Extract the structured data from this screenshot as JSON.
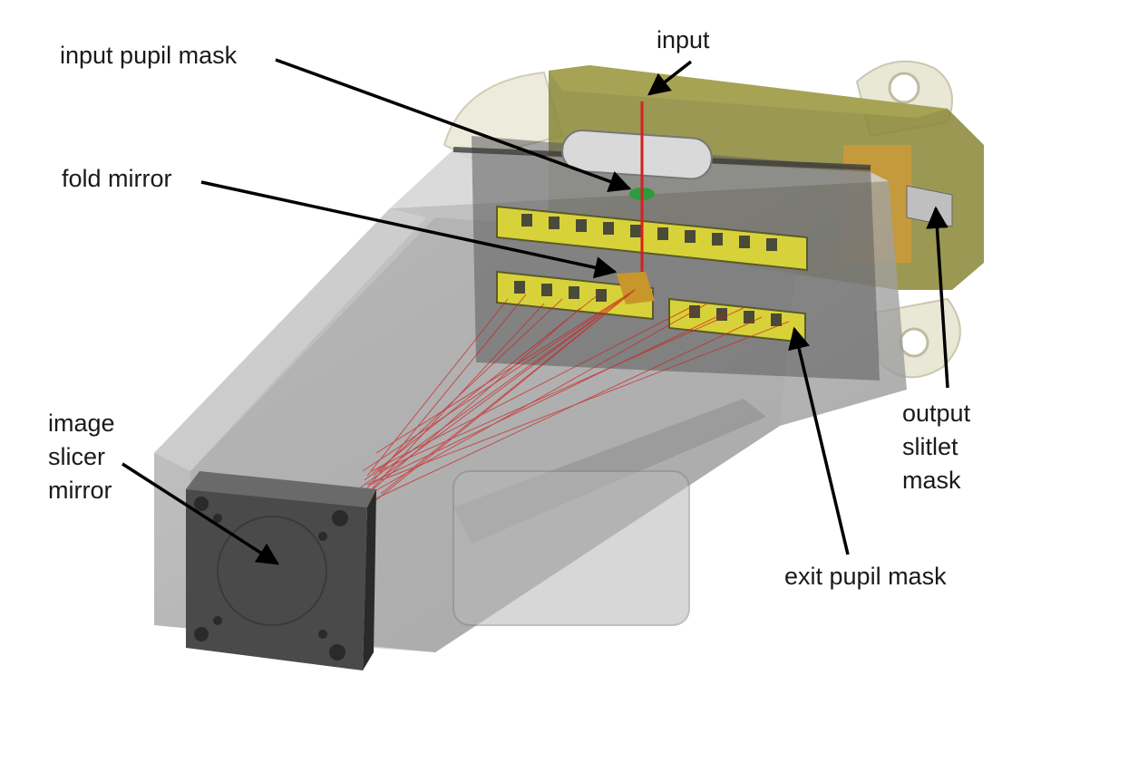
{
  "labels": {
    "input_pupil_mask": "input pupil mask",
    "input": "input",
    "fold_mirror": "fold mirror",
    "image_slicer_mirror": [
      "image",
      "slicer",
      "mirror"
    ],
    "output_slitlet_mask": [
      "output",
      "slitlet",
      "mask"
    ],
    "exit_pupil_mask": "exit pupil mask"
  },
  "colors": {
    "housing_grey": "#9a9a9a",
    "dark_block": "#4a4a4a",
    "olive_holder": "#7d7a2a",
    "yellow_mask": "#d9d23a",
    "beam_red": "#d42020",
    "pupil_green": "#2e9a3e",
    "fold_orange": "#c8962a",
    "leader_line": "#000000"
  }
}
